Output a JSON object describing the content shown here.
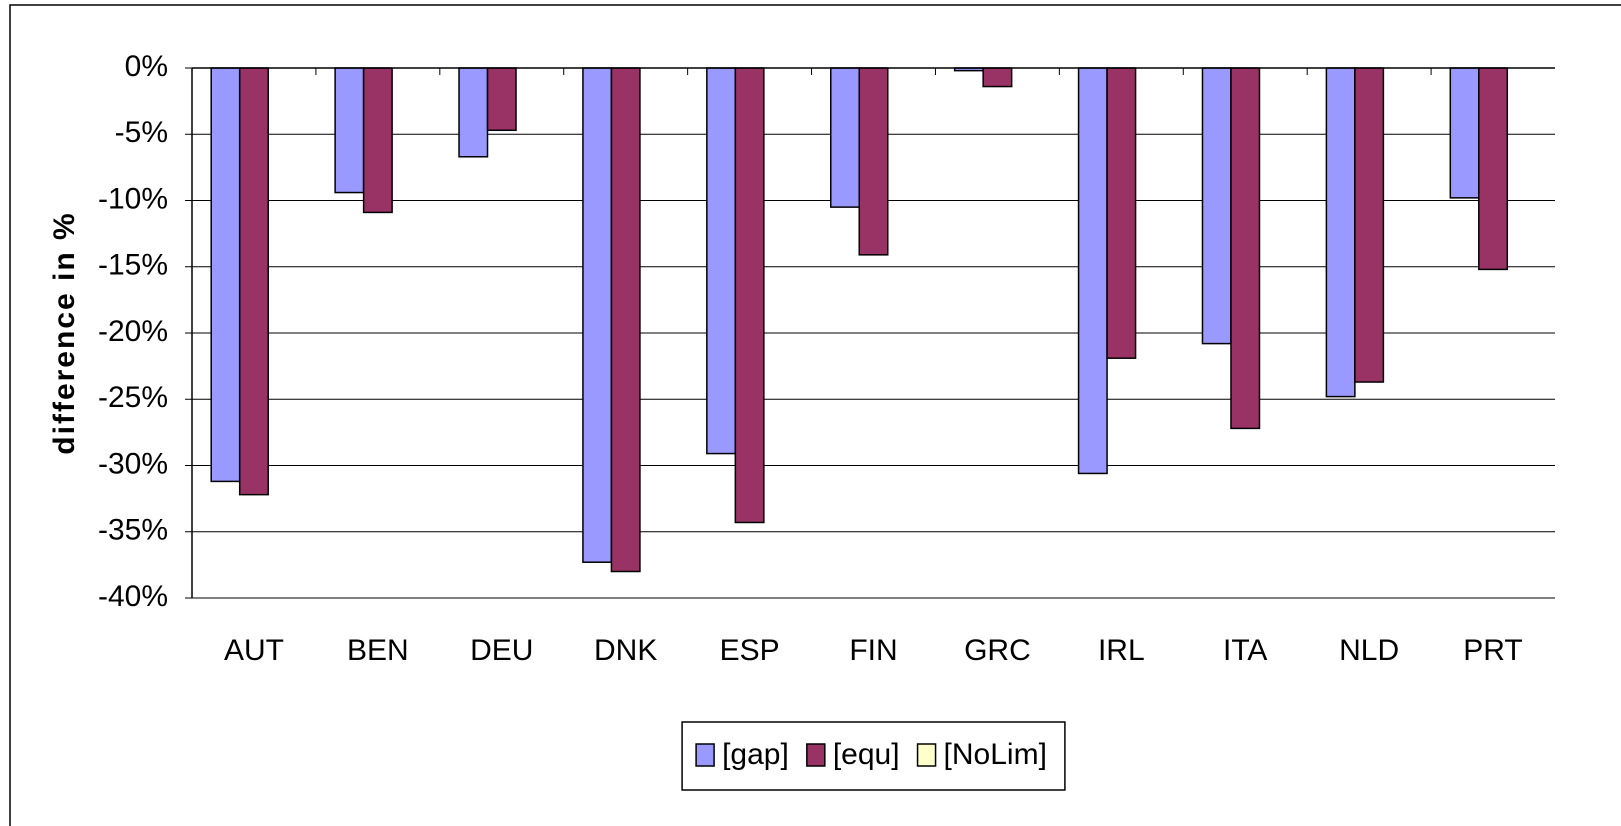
{
  "chart_data": {
    "type": "bar",
    "y_label": "difference in %",
    "categories": [
      "AUT",
      "BEN",
      "DEU",
      "DNK",
      "ESP",
      "FIN",
      "GRC",
      "IRL",
      "ITA",
      "NLD",
      "PRT"
    ],
    "series": [
      {
        "name": "[gap]",
        "color": "#9999ff",
        "values": [
          -31.2,
          -9.4,
          -6.7,
          -37.3,
          -29.1,
          -10.5,
          -0.2,
          -30.6,
          -20.8,
          -24.8,
          -9.8
        ]
      },
      {
        "name": "[equ]",
        "color": "#993366",
        "values": [
          -32.2,
          -10.9,
          -4.7,
          -38.0,
          -34.3,
          -14.1,
          -1.4,
          -21.9,
          -27.2,
          -23.7,
          -15.2
        ]
      },
      {
        "name": "[NoLim]",
        "color": "#ffffcc",
        "values": [
          0,
          0,
          0,
          0,
          0,
          0,
          0,
          0,
          0,
          0,
          0
        ]
      }
    ],
    "ylim": [
      -40,
      0
    ],
    "yticks": [
      {
        "value": 0,
        "label": "0%"
      },
      {
        "value": -5,
        "label": "-5%"
      },
      {
        "value": -10,
        "label": "-10%"
      },
      {
        "value": -15,
        "label": "-15%"
      },
      {
        "value": -20,
        "label": "-20%"
      },
      {
        "value": -25,
        "label": "-25%"
      },
      {
        "value": -30,
        "label": "-30%"
      },
      {
        "value": -35,
        "label": "-35%"
      },
      {
        "value": -40,
        "label": "-40%"
      }
    ],
    "grid": true,
    "legend": "bottom"
  }
}
